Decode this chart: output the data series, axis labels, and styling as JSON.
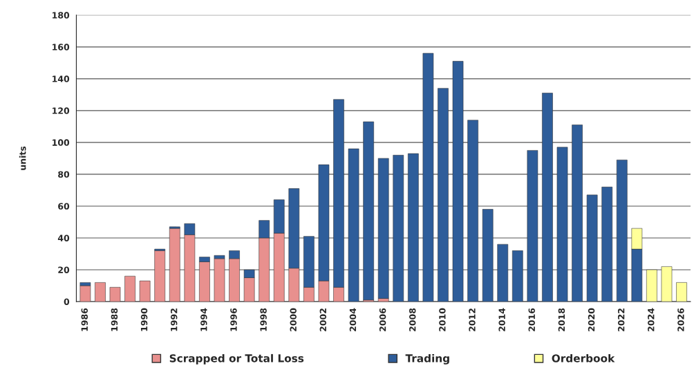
{
  "chart_data": {
    "type": "bar",
    "stacked": true,
    "ylabel": "units",
    "ylim": [
      0,
      180
    ],
    "yticks": [
      0,
      20,
      40,
      60,
      80,
      100,
      120,
      140,
      160,
      180
    ],
    "grid": "y",
    "legend": "bottom",
    "categories": [
      "1986",
      null,
      "1988",
      null,
      "1990",
      null,
      "1992",
      null,
      "1994",
      null,
      "1996",
      null,
      "1998",
      null,
      "2000",
      null,
      "2002",
      null,
      "2004",
      null,
      "2006",
      null,
      "2008",
      null,
      "2010",
      null,
      "2012",
      null,
      "2014",
      null,
      "2016",
      null,
      "2018",
      null,
      "2020",
      null,
      "2022",
      null,
      "2024",
      null,
      "2026"
    ],
    "series": [
      {
        "name": "Scrapped or Total Loss",
        "color": "#e8908e",
        "values": [
          10,
          12,
          9,
          16,
          13,
          32,
          46,
          42,
          25,
          27,
          27,
          15,
          40,
          43,
          21,
          9,
          13,
          9,
          null,
          1,
          2,
          null,
          null,
          null,
          null,
          null,
          null,
          null,
          null,
          null,
          null,
          null,
          null,
          null,
          null,
          null,
          null,
          null,
          null,
          null,
          null
        ]
      },
      {
        "name": "Trading",
        "color": "#2e5d9a",
        "values": [
          2,
          null,
          null,
          null,
          null,
          1,
          1,
          7,
          3,
          2,
          5,
          5,
          11,
          21,
          50,
          32,
          73,
          118,
          96,
          112,
          88,
          92,
          93,
          156,
          134,
          151,
          114,
          58,
          36,
          32,
          95,
          131,
          97,
          111,
          67,
          72,
          89,
          33,
          null,
          null,
          null
        ]
      },
      {
        "name": "Orderbook",
        "color": "#ffff99",
        "values": [
          null,
          null,
          null,
          null,
          null,
          null,
          null,
          null,
          null,
          null,
          null,
          null,
          null,
          null,
          null,
          null,
          null,
          null,
          null,
          null,
          null,
          null,
          null,
          null,
          null,
          null,
          null,
          null,
          null,
          null,
          null,
          null,
          null,
          null,
          null,
          null,
          null,
          13,
          20,
          22,
          12
        ]
      }
    ]
  }
}
